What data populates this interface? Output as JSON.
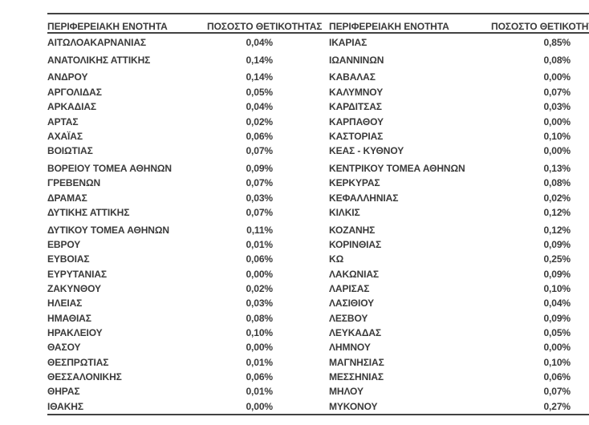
{
  "colors": {
    "background": "#FFFFFF",
    "text": "#3A3A3A",
    "rule": "#424242"
  },
  "table": {
    "header_labels": [
      "ΠΕΡΙΦΕΡΕΙΑΚΗ ΕΝΟΤΗΤΑ",
      "ΠΟΣΟΣΤΟ ΘΕΤΙΚΟΤΗΤΑΣ",
      "ΠΕΡΙΦΕΡΕΙΑΚΗ ΕΝΟΤΗΤΑ",
      "ΠΟΣΟΣΤΟ ΘΕΤΙΚΟΤΗΤΑΣ"
    ],
    "rows": [
      [
        "ΑΙΤΩΛΟΑΚΑΡΝΑΝΙΑΣ",
        "0,04%",
        "ΙΚΑΡΙΑΣ",
        "0,85%"
      ],
      [
        "ΑΝΑΤΟΛΙΚΗΣ ΑΤΤΙΚΗΣ",
        "0,14%",
        "ΙΩΑΝΝΙΝΩΝ",
        "0,08%"
      ],
      [
        "ΑΝΔΡΟΥ",
        "0,14%",
        "ΚΑΒΑΛΑΣ",
        "0,00%"
      ],
      [
        "ΑΡΓΟΛΙΔΑΣ",
        "0,05%",
        "ΚΑΛΥΜΝΟΥ",
        "0,07%"
      ],
      [
        "ΑΡΚΑΔΙΑΣ",
        "0,04%",
        "ΚΑΡΔΙΤΣΑΣ",
        "0,03%"
      ],
      [
        "ΑΡΤΑΣ",
        "0,02%",
        "ΚΑΡΠΑΘΟΥ",
        "0,00%"
      ],
      [
        "ΑΧΑΪΑΣ",
        "0,06%",
        "ΚΑΣΤΟΡΙΑΣ",
        "0,10%"
      ],
      [
        "ΒΟΙΩΤΙΑΣ",
        "0,07%",
        "ΚΕΑΣ - ΚΥΘΝΟΥ",
        "0,00%"
      ],
      [
        "ΒΟΡΕΙΟΥ ΤΟΜΕΑ ΑΘΗΝΩΝ",
        "0,09%",
        "ΚΕΝΤΡΙΚΟΥ ΤΟΜΕΑ ΑΘΗΝΩΝ",
        "0,13%"
      ],
      [
        "ΓΡΕΒΕΝΩΝ",
        "0,07%",
        "ΚΕΡΚΥΡΑΣ",
        "0,08%"
      ],
      [
        "ΔΡΑΜΑΣ",
        "0,03%",
        "ΚΕΦΑΛΛΗΝΙΑΣ",
        "0,02%"
      ],
      [
        "ΔΥΤΙΚΗΣ ΑΤΤΙΚΗΣ",
        "0,07%",
        "ΚΙΛΚΙΣ",
        "0,12%"
      ],
      [
        "ΔΥΤΙΚΟΥ ΤΟΜΕΑ ΑΘΗΝΩΝ",
        "0,11%",
        "ΚΟΖΑΝΗΣ",
        "0,12%"
      ],
      [
        "ΕΒΡΟΥ",
        "0,01%",
        "ΚΟΡΙΝΘΙΑΣ",
        "0,09%"
      ],
      [
        "ΕΥΒΟΙΑΣ",
        "0,06%",
        "ΚΩ",
        "0,25%"
      ],
      [
        "ΕΥΡΥΤΑΝΙΑΣ",
        "0,00%",
        "ΛΑΚΩΝΙΑΣ",
        "0,09%"
      ],
      [
        "ΖΑΚΥΝΘΟΥ",
        "0,02%",
        "ΛΑΡΙΣΑΣ",
        "0,10%"
      ],
      [
        "ΗΛΕΙΑΣ",
        "0,03%",
        "ΛΑΣΙΘΙΟΥ",
        "0,04%"
      ],
      [
        "ΗΜΑΘΙΑΣ",
        "0,08%",
        "ΛΕΣΒΟΥ",
        "0,09%"
      ],
      [
        "ΗΡΑΚΛΕΙΟΥ",
        "0,10%",
        "ΛΕΥΚΑΔΑΣ",
        "0,05%"
      ],
      [
        "ΘΑΣΟΥ",
        "0,00%",
        "ΛΗΜΝΟΥ",
        "0,00%"
      ],
      [
        "ΘΕΣΠΡΩΤΙΑΣ",
        "0,01%",
        "ΜΑΓΝΗΣΙΑΣ",
        "0,10%"
      ],
      [
        "ΘΕΣΣΑΛΟΝΙΚΗΣ",
        "0,06%",
        "ΜΕΣΣΗΝΙΑΣ",
        "0,06%"
      ],
      [
        "ΘΗΡΑΣ",
        "0,01%",
        "ΜΗΛΟΥ",
        "0,07%"
      ],
      [
        "ΙΘΑΚΗΣ",
        "0,00%",
        "ΜΥΚΟΝΟΥ",
        "0,27%"
      ]
    ]
  }
}
